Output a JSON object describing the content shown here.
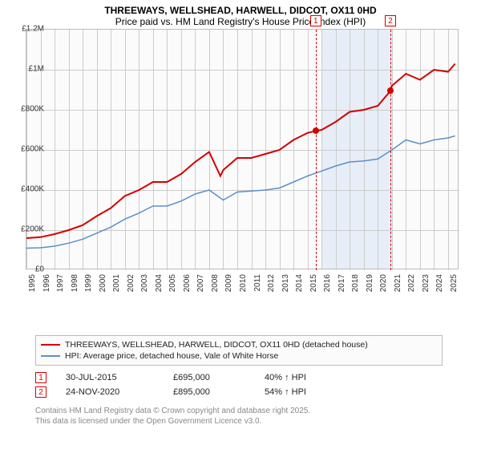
{
  "title_line1": "THREEWAYS, WELLSHEAD, HARWELL, DIDCOT, OX11 0HD",
  "title_line2": "Price paid vs. HM Land Registry's House Price Index (HPI)",
  "chart": {
    "type": "line",
    "x_years": [
      1995,
      1996,
      1997,
      1998,
      1999,
      2000,
      2001,
      2002,
      2003,
      2004,
      2005,
      2006,
      2007,
      2008,
      2009,
      2010,
      2011,
      2012,
      2013,
      2014,
      2015,
      2016,
      2017,
      2018,
      2019,
      2020,
      2021,
      2022,
      2023,
      2024,
      2025
    ],
    "xlim": [
      1995,
      2025.8
    ],
    "ylim": [
      0,
      1200000
    ],
    "ytick_step": 200000,
    "ytick_labels": [
      "£0",
      "£200K",
      "£400K",
      "£600K",
      "£800K",
      "£1M",
      "£1.2M"
    ],
    "grid_color": "#cccccc",
    "background_color": "#fbfbfb",
    "plot_border_color": "#bbbbbb",
    "shaded_range": [
      2016,
      2021
    ],
    "shaded_color": "#e7eef8",
    "series": {
      "property": {
        "label": "THREEWAYS, WELLSHEAD, HARWELL, DIDCOT, OX11 0HD (detached house)",
        "color": "#d40000",
        "line_width": 2,
        "years": [
          1995,
          1996,
          1997,
          1998,
          1999,
          2000,
          2001,
          2002,
          2003,
          2004,
          2005,
          2006,
          2007,
          2008,
          2008.8,
          2009,
          2010,
          2011,
          2012,
          2013,
          2014,
          2015,
          2015.58,
          2016,
          2017,
          2018,
          2019,
          2020,
          2020.9,
          2021,
          2022,
          2023,
          2024,
          2025,
          2025.5
        ],
        "values": [
          160000,
          165000,
          180000,
          200000,
          225000,
          270000,
          310000,
          370000,
          400000,
          440000,
          440000,
          480000,
          540000,
          590000,
          470000,
          500000,
          560000,
          560000,
          580000,
          600000,
          650000,
          685000,
          695000,
          700000,
          740000,
          790000,
          800000,
          820000,
          895000,
          920000,
          980000,
          950000,
          1000000,
          990000,
          1030000
        ]
      },
      "hpi": {
        "label": "HPI: Average price, detached house, Vale of White Horse",
        "color": "#5b8fc7",
        "line_width": 1.5,
        "years": [
          1995,
          1996,
          1997,
          1998,
          1999,
          2000,
          2001,
          2002,
          2003,
          2004,
          2005,
          2006,
          2007,
          2008,
          2009,
          2010,
          2011,
          2012,
          2013,
          2014,
          2015,
          2016,
          2017,
          2018,
          2019,
          2020,
          2021,
          2022,
          2023,
          2024,
          2025,
          2025.5
        ],
        "values": [
          110000,
          112000,
          120000,
          135000,
          155000,
          185000,
          215000,
          255000,
          285000,
          320000,
          320000,
          345000,
          380000,
          400000,
          350000,
          390000,
          395000,
          400000,
          410000,
          440000,
          470000,
          495000,
          520000,
          540000,
          545000,
          555000,
          600000,
          650000,
          630000,
          650000,
          660000,
          670000
        ]
      }
    },
    "sale_markers": [
      {
        "id": "1",
        "year": 2015.58,
        "value": 695000
      },
      {
        "id": "2",
        "year": 2020.9,
        "value": 895000
      }
    ]
  },
  "legend": {
    "border_color": "#bbbbbb",
    "background_color": "#fbfbfb"
  },
  "sales": [
    {
      "id": "1",
      "date": "30-JUL-2015",
      "price": "£695,000",
      "delta": "40% ↑ HPI"
    },
    {
      "id": "2",
      "date": "24-NOV-2020",
      "price": "£895,000",
      "delta": "54% ↑ HPI"
    }
  ],
  "footer_line1": "Contains HM Land Registry data © Crown copyright and database right 2025.",
  "footer_line2": "This data is licensed under the Open Government Licence v3.0."
}
